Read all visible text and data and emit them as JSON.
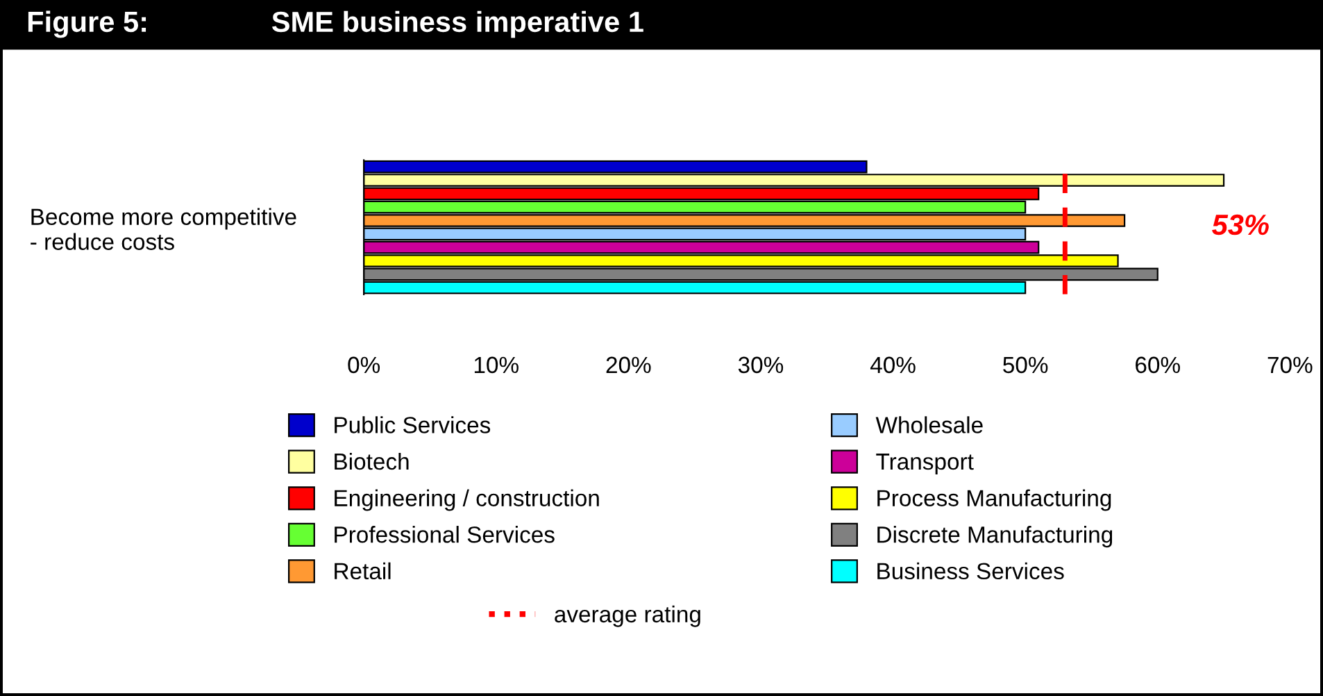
{
  "chart_data": {
    "type": "bar",
    "orientation": "horizontal",
    "title": "Figure 5:",
    "subtitle": "SME business imperative 1",
    "categories": [
      "Become more competitive\n- reduce costs"
    ],
    "series": [
      {
        "name": "Public Services",
        "color": "#0000cc",
        "values": [
          38
        ]
      },
      {
        "name": "Biotech",
        "color": "#ffffa0",
        "values": [
          65
        ]
      },
      {
        "name": "Engineering / construction",
        "color": "#ff0000",
        "values": [
          51
        ]
      },
      {
        "name": "Professional Services",
        "color": "#66ff33",
        "values": [
          50
        ]
      },
      {
        "name": "Retail",
        "color": "#ff9933",
        "values": [
          57.5
        ]
      },
      {
        "name": "Wholesale",
        "color": "#99ccff",
        "values": [
          50
        ]
      },
      {
        "name": "Transport",
        "color": "#cc0099",
        "values": [
          51
        ]
      },
      {
        "name": "Process Manufacturing",
        "color": "#ffff00",
        "values": [
          57
        ]
      },
      {
        "name": "Discrete Manufacturing",
        "color": "#808080",
        "values": [
          60
        ]
      },
      {
        "name": "Business Services",
        "color": "#00ffff",
        "values": [
          50
        ]
      }
    ],
    "xlim": [
      0,
      70
    ],
    "xticks": [
      {
        "value": 0,
        "label": "0%"
      },
      {
        "value": 10,
        "label": "10%"
      },
      {
        "value": 20,
        "label": "20%"
      },
      {
        "value": 30,
        "label": "30%"
      },
      {
        "value": 40,
        "label": "40%"
      },
      {
        "value": 50,
        "label": "50%"
      },
      {
        "value": 60,
        "label": "60%"
      },
      {
        "value": 70,
        "label": "70%"
      }
    ],
    "ref_lines": [
      {
        "axis": "x",
        "value": 53,
        "label": "average rating",
        "color": "#ff0000",
        "line_style": "dashed"
      }
    ],
    "annotations": [
      "53%"
    ],
    "grid": false,
    "legend": "bottom"
  }
}
